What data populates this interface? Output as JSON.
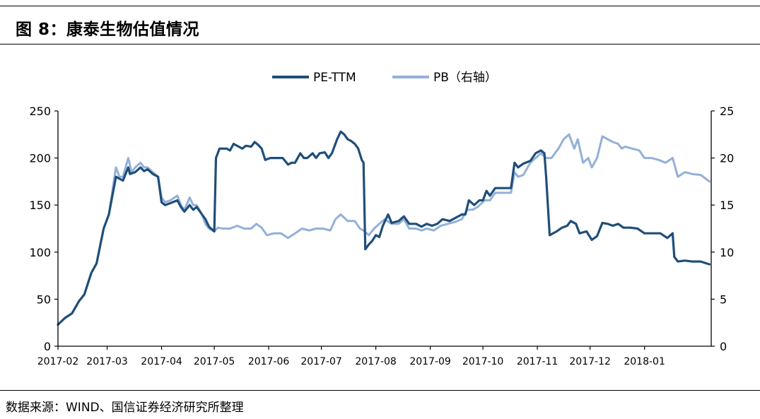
{
  "figure": {
    "title": "图 8：康泰生物估值情况",
    "source": "数据来源：WIND、国信证券经济研究所整理"
  },
  "chart_data": {
    "type": "line",
    "title": "",
    "xlabel": "",
    "ylabel_left": "",
    "ylabel_right": "",
    "legend_position": "top-center",
    "grid": false,
    "x_ticks": [
      "2017-02",
      "2017-03",
      "2017-04",
      "2017-05",
      "2017-06",
      "2017-07",
      "2017-08",
      "2017-09",
      "2017-10",
      "2017-11",
      "2017-12",
      "2018-01"
    ],
    "x_range": [
      "2017-02-01",
      "2018-02-08"
    ],
    "y_left": {
      "range": [
        0,
        250
      ],
      "ticks": [
        0,
        50,
        100,
        150,
        200,
        250
      ]
    },
    "y_right": {
      "range": [
        0,
        25
      ],
      "ticks": [
        0,
        5,
        10,
        15,
        20,
        25
      ]
    },
    "series": [
      {
        "name": "PE-TTM",
        "axis": "left",
        "color": "#1f4e79",
        "points": [
          [
            "2017-02-01",
            23
          ],
          [
            "2017-02-05",
            30
          ],
          [
            "2017-02-09",
            35
          ],
          [
            "2017-02-13",
            48
          ],
          [
            "2017-02-16",
            55
          ],
          [
            "2017-02-20",
            78
          ],
          [
            "2017-02-23",
            88
          ],
          [
            "2017-02-27",
            125
          ],
          [
            "2017-03-02",
            140
          ],
          [
            "2017-03-06",
            180
          ],
          [
            "2017-03-08",
            178
          ],
          [
            "2017-03-10",
            176
          ],
          [
            "2017-03-13",
            190
          ],
          [
            "2017-03-14",
            183
          ],
          [
            "2017-03-17",
            185
          ],
          [
            "2017-03-20",
            190
          ],
          [
            "2017-03-22",
            186
          ],
          [
            "2017-03-24",
            188
          ],
          [
            "2017-03-27",
            183
          ],
          [
            "2017-03-30",
            180
          ],
          [
            "2017-04-01",
            153
          ],
          [
            "2017-04-03",
            150
          ],
          [
            "2017-04-06",
            152
          ],
          [
            "2017-04-10",
            155
          ],
          [
            "2017-04-12",
            148
          ],
          [
            "2017-04-14",
            143
          ],
          [
            "2017-04-17",
            150
          ],
          [
            "2017-04-19",
            145
          ],
          [
            "2017-04-21",
            148
          ],
          [
            "2017-04-24",
            140
          ],
          [
            "2017-04-26",
            135
          ],
          [
            "2017-04-28",
            127
          ],
          [
            "2017-05-01",
            122
          ],
          [
            "2017-05-02",
            200
          ],
          [
            "2017-05-04",
            210
          ],
          [
            "2017-05-08",
            210
          ],
          [
            "2017-05-10",
            208
          ],
          [
            "2017-05-12",
            215
          ],
          [
            "2017-05-15",
            212
          ],
          [
            "2017-05-17",
            210
          ],
          [
            "2017-05-19",
            213
          ],
          [
            "2017-05-22",
            212
          ],
          [
            "2017-05-24",
            217
          ],
          [
            "2017-05-26",
            214
          ],
          [
            "2017-05-28",
            210
          ],
          [
            "2017-05-30",
            198
          ],
          [
            "2017-06-02",
            200
          ],
          [
            "2017-06-06",
            200
          ],
          [
            "2017-06-09",
            200
          ],
          [
            "2017-06-12",
            193
          ],
          [
            "2017-06-14",
            195
          ],
          [
            "2017-06-16",
            195
          ],
          [
            "2017-06-19",
            205
          ],
          [
            "2017-06-21",
            200
          ],
          [
            "2017-06-23",
            200
          ],
          [
            "2017-06-26",
            205
          ],
          [
            "2017-06-28",
            200
          ],
          [
            "2017-06-30",
            205
          ],
          [
            "2017-07-03",
            206
          ],
          [
            "2017-07-05",
            200
          ],
          [
            "2017-07-07",
            205
          ],
          [
            "2017-07-10",
            220
          ],
          [
            "2017-07-12",
            228
          ],
          [
            "2017-07-14",
            225
          ],
          [
            "2017-07-16",
            220
          ],
          [
            "2017-07-18",
            218
          ],
          [
            "2017-07-20",
            215
          ],
          [
            "2017-07-22",
            210
          ],
          [
            "2017-07-24",
            198
          ],
          [
            "2017-07-25",
            195
          ],
          [
            "2017-07-26",
            103
          ],
          [
            "2017-07-28",
            108
          ],
          [
            "2017-07-30",
            112
          ],
          [
            "2017-08-01",
            118
          ],
          [
            "2017-08-03",
            116
          ],
          [
            "2017-08-05",
            128
          ],
          [
            "2017-08-08",
            140
          ],
          [
            "2017-08-10",
            131
          ],
          [
            "2017-08-14",
            133
          ],
          [
            "2017-08-17",
            138
          ],
          [
            "2017-08-20",
            130
          ],
          [
            "2017-08-24",
            130
          ],
          [
            "2017-08-27",
            127
          ],
          [
            "2017-08-30",
            130
          ],
          [
            "2017-09-02",
            128
          ],
          [
            "2017-09-05",
            130
          ],
          [
            "2017-09-08",
            135
          ],
          [
            "2017-09-12",
            133
          ],
          [
            "2017-09-15",
            136
          ],
          [
            "2017-09-19",
            140
          ],
          [
            "2017-09-21",
            140
          ],
          [
            "2017-09-23",
            155
          ],
          [
            "2017-09-26",
            150
          ],
          [
            "2017-09-29",
            155
          ],
          [
            "2017-10-01",
            155
          ],
          [
            "2017-10-03",
            165
          ],
          [
            "2017-10-05",
            160
          ],
          [
            "2017-10-08",
            168
          ],
          [
            "2017-10-12",
            168
          ],
          [
            "2017-10-15",
            168
          ],
          [
            "2017-10-17",
            168
          ],
          [
            "2017-10-19",
            195
          ],
          [
            "2017-10-21",
            190
          ],
          [
            "2017-10-24",
            194
          ],
          [
            "2017-10-28",
            197
          ],
          [
            "2017-10-31",
            205
          ],
          [
            "2017-11-03",
            208
          ],
          [
            "2017-11-05",
            205
          ],
          [
            "2017-11-06",
            180
          ],
          [
            "2017-11-08",
            118
          ],
          [
            "2017-11-12",
            122
          ],
          [
            "2017-11-15",
            126
          ],
          [
            "2017-11-18",
            128
          ],
          [
            "2017-11-20",
            133
          ],
          [
            "2017-11-23",
            130
          ],
          [
            "2017-11-25",
            120
          ],
          [
            "2017-11-29",
            122
          ],
          [
            "2017-12-02",
            113
          ],
          [
            "2017-12-05",
            117
          ],
          [
            "2017-12-08",
            131
          ],
          [
            "2017-12-11",
            130
          ],
          [
            "2017-12-14",
            128
          ],
          [
            "2017-12-17",
            130
          ],
          [
            "2017-12-20",
            126
          ],
          [
            "2017-12-24",
            126
          ],
          [
            "2017-12-28",
            125
          ],
          [
            "2018-01-01",
            120
          ],
          [
            "2018-01-05",
            120
          ],
          [
            "2018-01-10",
            120
          ],
          [
            "2018-01-14",
            115
          ],
          [
            "2018-01-17",
            120
          ],
          [
            "2018-01-18",
            95
          ],
          [
            "2018-01-20",
            90
          ],
          [
            "2018-01-24",
            91
          ],
          [
            "2018-01-28",
            90
          ],
          [
            "2018-02-02",
            90
          ],
          [
            "2018-02-07",
            87
          ]
        ]
      },
      {
        "name": "PB（右轴）",
        "axis": "right",
        "color": "#93b0d8",
        "points": [
          [
            "2017-02-01",
            2.3
          ],
          [
            "2017-02-05",
            3.0
          ],
          [
            "2017-02-09",
            3.5
          ],
          [
            "2017-02-13",
            4.8
          ],
          [
            "2017-02-16",
            5.5
          ],
          [
            "2017-02-20",
            7.8
          ],
          [
            "2017-02-23",
            8.8
          ],
          [
            "2017-02-27",
            12.5
          ],
          [
            "2017-03-02",
            14.0
          ],
          [
            "2017-03-06",
            19.0
          ],
          [
            "2017-03-08",
            18.0
          ],
          [
            "2017-03-10",
            18.0
          ],
          [
            "2017-03-13",
            20.0
          ],
          [
            "2017-03-15",
            18.5
          ],
          [
            "2017-03-17",
            19.0
          ],
          [
            "2017-03-20",
            19.5
          ],
          [
            "2017-03-22",
            19.0
          ],
          [
            "2017-03-24",
            19.0
          ],
          [
            "2017-03-27",
            18.5
          ],
          [
            "2017-03-30",
            18.0
          ],
          [
            "2017-04-01",
            15.8
          ],
          [
            "2017-04-03",
            15.3
          ],
          [
            "2017-04-06",
            15.5
          ],
          [
            "2017-04-10",
            16.0
          ],
          [
            "2017-04-12",
            15.0
          ],
          [
            "2017-04-14",
            14.5
          ],
          [
            "2017-04-17",
            15.8
          ],
          [
            "2017-04-19",
            15.0
          ],
          [
            "2017-04-21",
            15.0
          ],
          [
            "2017-04-24",
            14.0
          ],
          [
            "2017-04-26",
            13.0
          ],
          [
            "2017-04-28",
            12.5
          ],
          [
            "2017-05-01",
            12.2
          ],
          [
            "2017-05-03",
            12.6
          ],
          [
            "2017-05-06",
            12.5
          ],
          [
            "2017-05-10",
            12.5
          ],
          [
            "2017-05-14",
            12.8
          ],
          [
            "2017-05-18",
            12.5
          ],
          [
            "2017-05-22",
            12.5
          ],
          [
            "2017-05-25",
            13.0
          ],
          [
            "2017-05-28",
            12.6
          ],
          [
            "2017-05-31",
            11.8
          ],
          [
            "2017-06-04",
            12.0
          ],
          [
            "2017-06-08",
            12.0
          ],
          [
            "2017-06-12",
            11.5
          ],
          [
            "2017-06-16",
            12.0
          ],
          [
            "2017-06-20",
            12.5
          ],
          [
            "2017-06-24",
            12.3
          ],
          [
            "2017-06-28",
            12.5
          ],
          [
            "2017-07-02",
            12.5
          ],
          [
            "2017-07-06",
            12.3
          ],
          [
            "2017-07-09",
            13.5
          ],
          [
            "2017-07-12",
            14.0
          ],
          [
            "2017-07-16",
            13.3
          ],
          [
            "2017-07-20",
            13.3
          ],
          [
            "2017-07-23",
            12.5
          ],
          [
            "2017-07-25",
            12.3
          ],
          [
            "2017-07-28",
            11.8
          ],
          [
            "2017-07-31",
            12.5
          ],
          [
            "2017-08-03",
            13.0
          ],
          [
            "2017-08-06",
            13.5
          ],
          [
            "2017-08-10",
            13.0
          ],
          [
            "2017-08-14",
            13.0
          ],
          [
            "2017-08-17",
            13.5
          ],
          [
            "2017-08-20",
            12.5
          ],
          [
            "2017-08-24",
            12.5
          ],
          [
            "2017-08-27",
            12.3
          ],
          [
            "2017-08-30",
            12.5
          ],
          [
            "2017-09-03",
            12.3
          ],
          [
            "2017-09-07",
            12.8
          ],
          [
            "2017-09-11",
            13.0
          ],
          [
            "2017-09-15",
            13.2
          ],
          [
            "2017-09-19",
            13.5
          ],
          [
            "2017-09-22",
            14.5
          ],
          [
            "2017-09-25",
            14.5
          ],
          [
            "2017-09-28",
            14.8
          ],
          [
            "2017-10-02",
            15.5
          ],
          [
            "2017-10-05",
            15.5
          ],
          [
            "2017-10-08",
            16.3
          ],
          [
            "2017-10-12",
            16.3
          ],
          [
            "2017-10-15",
            16.3
          ],
          [
            "2017-10-17",
            16.3
          ],
          [
            "2017-10-19",
            18.5
          ],
          [
            "2017-10-21",
            18.0
          ],
          [
            "2017-10-24",
            18.2
          ],
          [
            "2017-10-28",
            19.5
          ],
          [
            "2017-10-31",
            20.0
          ],
          [
            "2017-11-03",
            20.5
          ],
          [
            "2017-11-06",
            20.0
          ],
          [
            "2017-11-09",
            20.0
          ],
          [
            "2017-11-13",
            21.0
          ],
          [
            "2017-11-16",
            22.0
          ],
          [
            "2017-11-19",
            22.5
          ],
          [
            "2017-11-22",
            21.0
          ],
          [
            "2017-11-24",
            22.0
          ],
          [
            "2017-11-27",
            19.5
          ],
          [
            "2017-11-30",
            20.0
          ],
          [
            "2017-12-02",
            19.0
          ],
          [
            "2017-12-05",
            20.0
          ],
          [
            "2017-12-08",
            22.3
          ],
          [
            "2017-12-11",
            22.0
          ],
          [
            "2017-12-14",
            21.7
          ],
          [
            "2017-12-17",
            21.5
          ],
          [
            "2017-12-19",
            21.0
          ],
          [
            "2017-12-21",
            21.2
          ],
          [
            "2017-12-25",
            21.0
          ],
          [
            "2017-12-29",
            20.8
          ],
          [
            "2018-01-01",
            20.0
          ],
          [
            "2018-01-05",
            20.0
          ],
          [
            "2018-01-09",
            19.8
          ],
          [
            "2018-01-13",
            19.5
          ],
          [
            "2018-01-17",
            20.0
          ],
          [
            "2018-01-20",
            18.0
          ],
          [
            "2018-01-24",
            18.5
          ],
          [
            "2018-01-28",
            18.3
          ],
          [
            "2018-02-02",
            18.2
          ],
          [
            "2018-02-07",
            17.5
          ]
        ]
      }
    ]
  }
}
